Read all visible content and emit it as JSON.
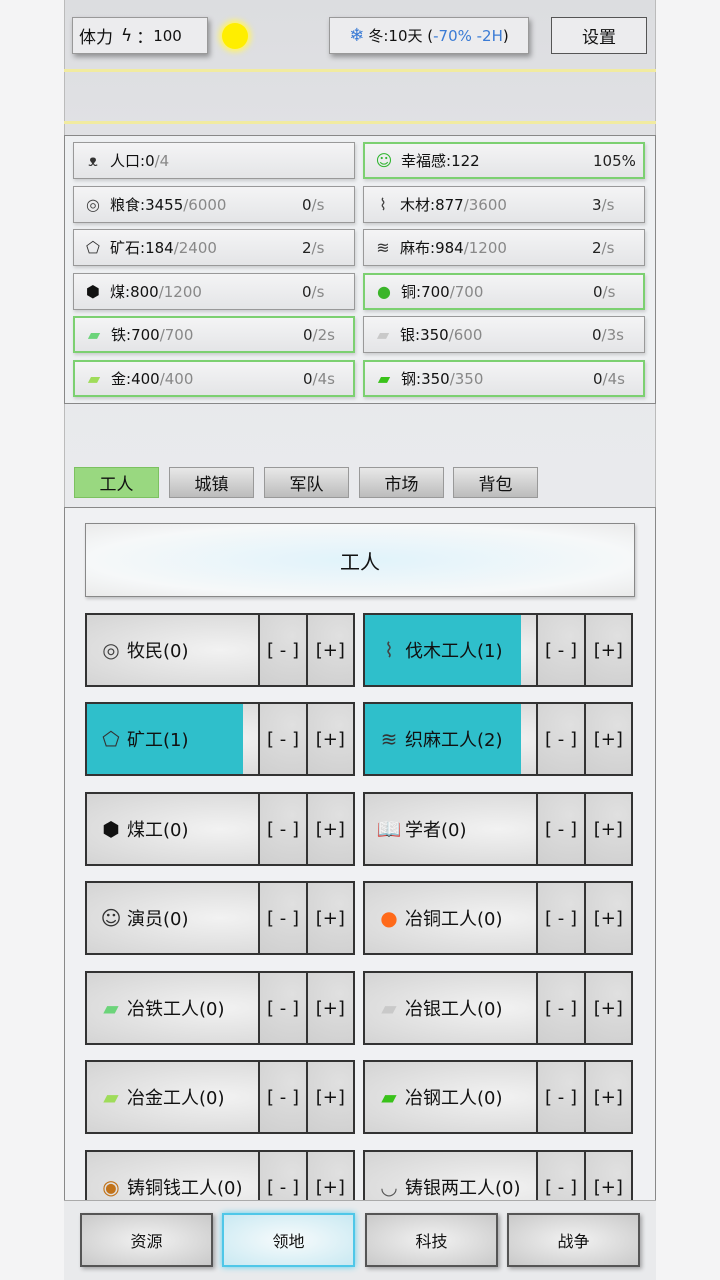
{
  "top": {
    "stamina_label": "体力",
    "stamina_icon": "lightning-icon",
    "stamina_value": "100",
    "weather_icon": "sun-icon",
    "season_icon": "snowflake-icon",
    "season": "冬:10天 (",
    "season_effect": "-70% -2H",
    ")": ")",
    "settings": "设置"
  },
  "resources": [
    {
      "icon": "people-icon",
      "name": "人口:",
      "value": "0",
      "max": "/4",
      "rate": "",
      "rate_unit": "",
      "highlight": false
    },
    {
      "icon": "smile-icon",
      "name": "幸福感:",
      "value": "122",
      "max": "",
      "rate": "105%",
      "rate_unit": "",
      "highlight": true
    },
    {
      "icon": "meat-icon",
      "name": "粮食:",
      "value": "3455",
      "max": "/6000",
      "rate": "0",
      "rate_unit": "/s",
      "highlight": false
    },
    {
      "icon": "wood-icon",
      "name": "木材:",
      "value": "877",
      "max": "/3600",
      "rate": "3",
      "rate_unit": "/s",
      "highlight": false
    },
    {
      "icon": "ore-icon",
      "name": "矿石:",
      "value": "184",
      "max": "/2400",
      "rate": "2",
      "rate_unit": "/s",
      "highlight": false
    },
    {
      "icon": "linen-icon",
      "name": "麻布:",
      "value": "984",
      "max": "/1200",
      "rate": "2",
      "rate_unit": "/s",
      "highlight": false
    },
    {
      "icon": "coal-icon",
      "name": "煤:",
      "value": "800",
      "max": "/1200",
      "rate": "0",
      "rate_unit": "/s",
      "highlight": false
    },
    {
      "icon": "copper-icon",
      "name": "铜:",
      "value": "700",
      "max": "/700",
      "rate": "0",
      "rate_unit": "/s",
      "highlight": true
    },
    {
      "icon": "iron-ingot-icon",
      "name": "铁:",
      "value": "700",
      "max": "/700",
      "rate": "0",
      "rate_unit": "/2s",
      "highlight": true
    },
    {
      "icon": "silver-ingot-icon",
      "name": "银:",
      "value": "350",
      "max": "/600",
      "rate": "0",
      "rate_unit": "/3s",
      "highlight": false
    },
    {
      "icon": "gold-ingot-icon",
      "name": "金:",
      "value": "400",
      "max": "/400",
      "rate": "0",
      "rate_unit": "/4s",
      "highlight": true
    },
    {
      "icon": "steel-ingot-icon",
      "name": "钢:",
      "value": "350",
      "max": "/350",
      "rate": "0",
      "rate_unit": "/4s",
      "highlight": true
    }
  ],
  "tabs": [
    {
      "label": "工人",
      "active": true
    },
    {
      "label": "城镇"
    },
    {
      "label": "军队"
    },
    {
      "label": "市场"
    },
    {
      "label": "背包"
    }
  ],
  "panel_title": "工人",
  "minus_label": "[ - ]",
  "plus_label": "[+]",
  "workers": [
    {
      "icon": "meat-icon",
      "label": "牧民(0)",
      "progress": 0
    },
    {
      "icon": "wood-icon",
      "label": "伐木工人(1)",
      "progress": 0.91
    },
    {
      "icon": "ore-icon",
      "label": "矿工(1)",
      "progress": 0.91
    },
    {
      "icon": "linen-icon",
      "label": "织麻工人(2)",
      "progress": 0.91
    },
    {
      "icon": "coal-icon",
      "label": "煤工(0)",
      "progress": 0
    },
    {
      "icon": "book-icon",
      "label": "学者(0)",
      "progress": 0
    },
    {
      "icon": "smile-icon",
      "label": "演员(0)",
      "progress": 0
    },
    {
      "icon": "copper-smelt-icon",
      "label": "冶铜工人(0)",
      "progress": 0
    },
    {
      "icon": "iron-ingot-icon",
      "label": "冶铁工人(0)",
      "progress": 0
    },
    {
      "icon": "silver-ingot-icon",
      "label": "冶银工人(0)",
      "progress": 0
    },
    {
      "icon": "gold-ingot-icon",
      "label": "冶金工人(0)",
      "progress": 0
    },
    {
      "icon": "steel-ingot-icon",
      "label": "冶钢工人(0)",
      "progress": 0
    },
    {
      "icon": "coin-icon",
      "label": "铸铜钱工人(0)",
      "progress": 0
    },
    {
      "icon": "silver-sycee-icon",
      "label": "铸银两工人(0)",
      "progress": 0
    }
  ],
  "nav": [
    {
      "label": "资源"
    },
    {
      "label": "领地",
      "active": true
    },
    {
      "label": "科技"
    },
    {
      "label": "战争"
    }
  ],
  "colors": {
    "progress": "#2fbfcb",
    "active_tab": "#99d880",
    "highlight_border": "#7cd071",
    "season_effect": "#3a7bd5",
    "active_nav": "#4fc7e8"
  }
}
